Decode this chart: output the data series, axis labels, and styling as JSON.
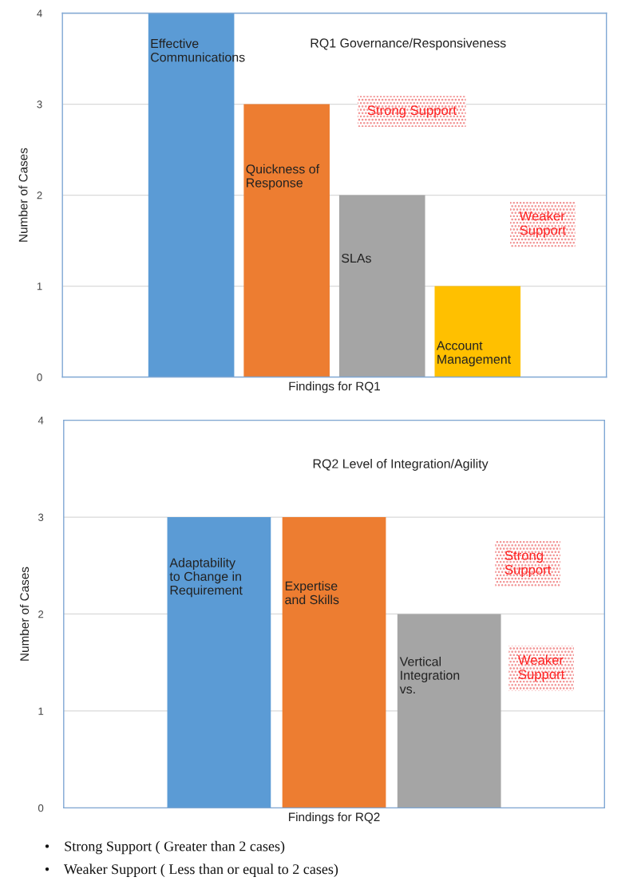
{
  "chart_data": [
    {
      "type": "bar",
      "title": "RQ1 Governance/Responsiveness",
      "xlabel": "Findings for RQ1",
      "ylabel": "Number of Cases",
      "categories": [
        "Effective\nCommunications",
        "Quickness of\nResponse",
        "SLAs",
        "Account\nManagement"
      ],
      "values": [
        4,
        3,
        2,
        1
      ],
      "colors": [
        "#5b9bd5",
        "#ed7d31",
        "#a5a5a5",
        "#ffc000"
      ],
      "ylim": [
        0,
        4
      ],
      "yticks": [
        0,
        1,
        2,
        3,
        4
      ],
      "grid": "y",
      "annotations": [
        "Strong Support",
        "Weaker\nSupport"
      ]
    },
    {
      "type": "bar",
      "title": "RQ2 Level of Integration/Agility",
      "xlabel": "Findings for RQ2",
      "ylabel": "Number of Cases",
      "categories": [
        "Adaptability\nto Change in\nRequirement",
        "Expertise\nand Skills",
        "Vertical\nIntegration\nvs."
      ],
      "values": [
        3,
        3,
        2
      ],
      "colors": [
        "#5b9bd5",
        "#ed7d31",
        "#a5a5a5"
      ],
      "ylim": [
        0,
        4
      ],
      "yticks": [
        0,
        1,
        2,
        3,
        4
      ],
      "grid": "y",
      "annotations": [
        "Strong\nSupport",
        "Weaker\nSupport",
        "•    Strong Support ( Greater than 2 cases)",
        "•    Weaker Support ( Less than or equal to 2 cases)"
      ]
    }
  ]
}
